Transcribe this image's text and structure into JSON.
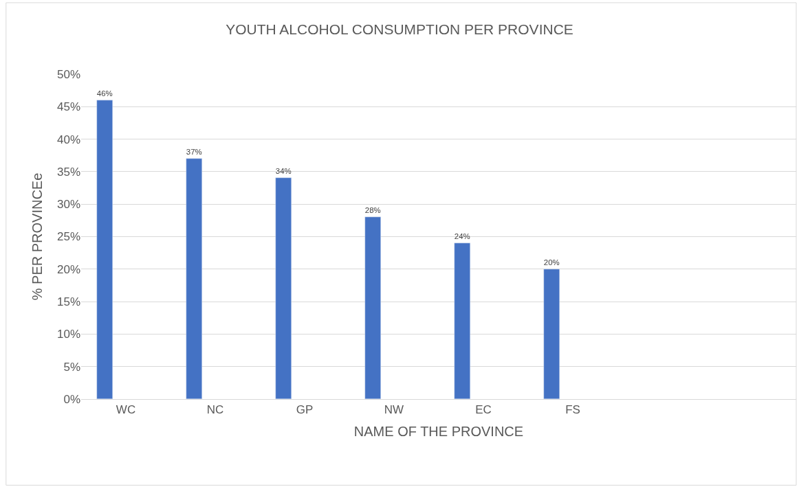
{
  "chart_data": {
    "type": "bar",
    "title": "YOUTH ALCOHOL CONSUMPTION PER PROVINCE",
    "xlabel": "NAME OF THE PROVINCE",
    "ylabel": "% PER PROVINCEe",
    "categories": [
      "WC",
      "NC",
      "GP",
      "NW",
      "EC",
      "FS",
      null,
      null
    ],
    "values": [
      46,
      37,
      34,
      28,
      24,
      20,
      null,
      null
    ],
    "value_labels": [
      "46%",
      "37%",
      "34%",
      "28%",
      "24%",
      "20%",
      null,
      null
    ],
    "color": "#4472c4",
    "ylim": [
      0,
      50
    ],
    "yticks": [
      {
        "value": 0,
        "label": "0%"
      },
      {
        "value": 5,
        "label": "5%"
      },
      {
        "value": 10,
        "label": "10%"
      },
      {
        "value": 15,
        "label": "15%"
      },
      {
        "value": 20,
        "label": "20%"
      },
      {
        "value": 25,
        "label": "25%"
      },
      {
        "value": 30,
        "label": "30%"
      },
      {
        "value": 35,
        "label": "35%"
      },
      {
        "value": 40,
        "label": "40%"
      },
      {
        "value": 45,
        "label": "45%"
      },
      {
        "value": 50,
        "label": "50%"
      }
    ],
    "grid": "y",
    "legend": false
  }
}
